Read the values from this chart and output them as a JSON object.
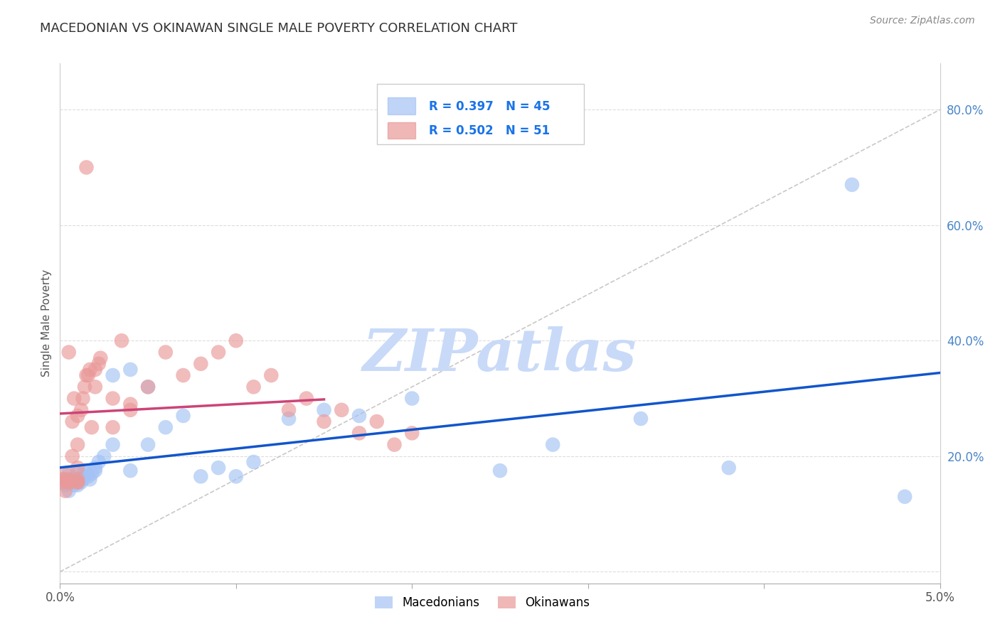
{
  "title": "MACEDONIAN VS OKINAWAN SINGLE MALE POVERTY CORRELATION CHART",
  "source": "Source: ZipAtlas.com",
  "ylabel": "Single Male Poverty",
  "xlim": [
    0.0,
    0.05
  ],
  "ylim": [
    -0.02,
    0.88
  ],
  "xticks": [
    0.0,
    0.01,
    0.02,
    0.03,
    0.04,
    0.05
  ],
  "xticklabels": [
    "0.0%",
    "",
    "",
    "",
    "",
    "5.0%"
  ],
  "yticks": [
    0.2,
    0.4,
    0.6,
    0.8
  ],
  "yticklabels": [
    "20.0%",
    "40.0%",
    "60.0%",
    "80.0%"
  ],
  "macedonian_color": "#a4c2f4",
  "okinawan_color": "#ea9999",
  "macedonian_line_color": "#1155cc",
  "okinawan_line_color": "#cc4477",
  "ref_line_color": "#bbbbbb",
  "macedonian_R": 0.397,
  "macedonian_N": 45,
  "okinawan_R": 0.502,
  "okinawan_N": 51,
  "watermark": "ZIPatlas",
  "watermark_color": "#c9daf8",
  "background_color": "#ffffff",
  "grid_color": "#dddddd",
  "ytick_color": "#4a86c8",
  "legend_R_color": "#1a73e8",
  "legend_box_edge": "#cccccc"
}
